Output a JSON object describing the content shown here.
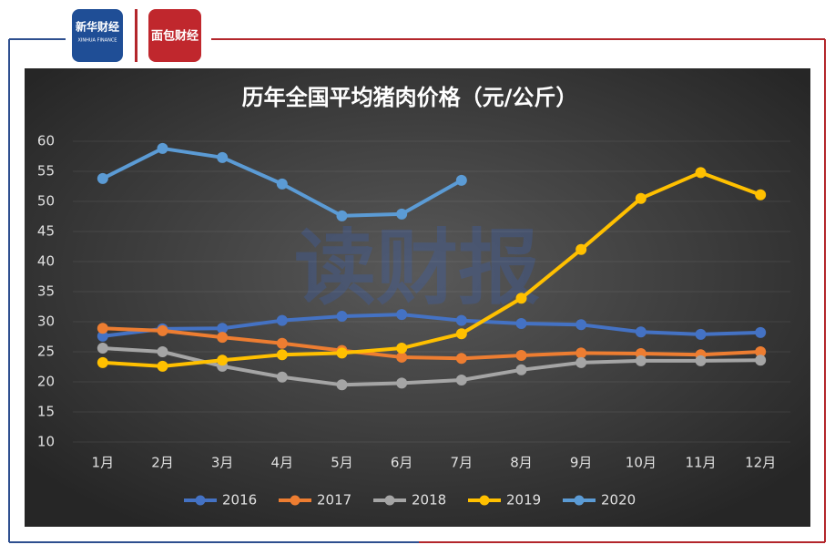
{
  "header": {
    "logo_text": "新华财经",
    "logo_subtext": "XINHUA FINANCE",
    "logo2_text": "面包财经"
  },
  "watermark": "读财报",
  "chart_data": {
    "type": "line",
    "title": "历年全国平均猪肉价格（元/公斤）",
    "categories": [
      "1月",
      "2月",
      "3月",
      "4月",
      "5月",
      "6月",
      "7月",
      "8月",
      "9月",
      "10月",
      "11月",
      "12月"
    ],
    "series": [
      {
        "name": "2016",
        "color": "#4472c4",
        "values": [
          27.6,
          28.8,
          28.9,
          30.2,
          30.9,
          31.2,
          30.2,
          29.7,
          29.5,
          28.3,
          27.9,
          28.2
        ]
      },
      {
        "name": "2017",
        "color": "#ed7d31",
        "values": [
          28.9,
          28.5,
          27.4,
          26.4,
          25.2,
          24.1,
          23.9,
          24.4,
          24.8,
          24.7,
          24.5,
          25.0
        ]
      },
      {
        "name": "2018",
        "color": "#a5a5a5",
        "values": [
          25.6,
          25.0,
          22.6,
          20.8,
          19.5,
          19.8,
          20.3,
          22.0,
          23.2,
          23.5,
          23.5,
          23.6
        ]
      },
      {
        "name": "2019",
        "color": "#ffc000",
        "values": [
          23.2,
          22.6,
          23.6,
          24.5,
          24.8,
          25.6,
          28.0,
          33.9,
          42.0,
          50.5,
          54.8,
          51.1
        ]
      },
      {
        "name": "2020",
        "color": "#5b9bd5",
        "values": [
          53.8,
          58.8,
          57.3,
          52.9,
          47.6,
          47.9,
          53.5,
          null,
          null,
          null,
          null,
          null
        ]
      }
    ],
    "ylim": [
      10,
      60
    ],
    "yticks": [
      10,
      15,
      20,
      25,
      30,
      35,
      40,
      45,
      50,
      55,
      60
    ],
    "grid": true,
    "legend": "bottom"
  }
}
